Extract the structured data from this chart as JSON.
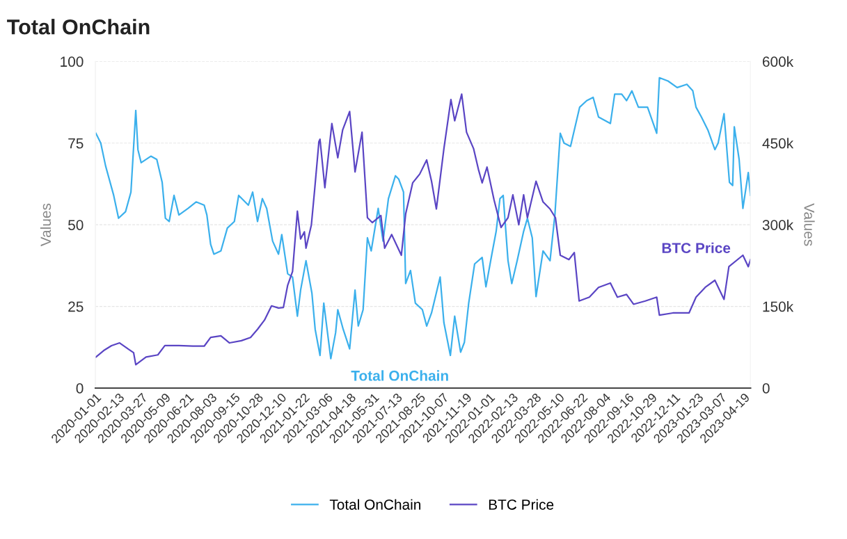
{
  "chart_data": {
    "type": "line",
    "title": "Total OnChain",
    "ylabel": "Values",
    "y2label": "Values",
    "xlim": [
      "2020-01-01",
      "2023-05-01"
    ],
    "xticks": [
      "2020-01-01",
      "2020-02-13",
      "2020-03-27",
      "2020-05-09",
      "2020-06-21",
      "2020-08-03",
      "2020-09-15",
      "2020-10-28",
      "2020-12-10",
      "2021-01-22",
      "2021-03-06",
      "2021-04-18",
      "2021-05-31",
      "2021-07-13",
      "2021-08-25",
      "2021-10-07",
      "2021-11-19",
      "2022-01-01",
      "2022-02-13",
      "2022-03-28",
      "2022-05-10",
      "2022-06-22",
      "2022-08-04",
      "2022-09-16",
      "2022-10-29",
      "2022-12-11",
      "2023-01-23",
      "2023-03-07",
      "2023-04-19"
    ],
    "ylim": [
      0,
      100
    ],
    "yticks": [
      0,
      25,
      50,
      75,
      100
    ],
    "y2lim": [
      0,
      600000
    ],
    "y2ticks": [
      0,
      {
        "value": 150000,
        "label": "150k"
      },
      {
        "value": 300000,
        "label": "300k"
      },
      {
        "value": 450000,
        "label": "450k"
      },
      {
        "value": 600000,
        "label": "600k"
      }
    ],
    "grid": "y",
    "legend": "bottom",
    "annotations": [
      "Total OnChain",
      "BTC Price"
    ],
    "series": [
      {
        "name": "Total OnChain",
        "color": "#3bb0ec",
        "x": [
          "2020-01-02",
          "2020-01-11",
          "2020-01-20",
          "2020-02-04",
          "2020-02-13",
          "2020-02-26",
          "2020-03-07",
          "2020-03-16",
          "2020-03-20",
          "2020-03-26",
          "2020-04-13",
          "2020-04-24",
          "2020-05-04",
          "2020-05-10",
          "2020-05-17",
          "2020-05-26",
          "2020-06-04",
          "2020-06-21",
          "2020-07-06",
          "2020-07-21",
          "2020-07-26",
          "2020-08-02",
          "2020-08-08",
          "2020-08-21",
          "2020-09-02",
          "2020-09-15",
          "2020-09-23",
          "2020-10-11",
          "2020-10-19",
          "2020-10-28",
          "2020-11-06",
          "2020-11-14",
          "2020-11-25",
          "2020-12-06",
          "2020-12-12",
          "2020-12-23",
          "2021-01-01",
          "2021-01-10",
          "2021-01-16",
          "2021-01-26",
          "2021-02-06",
          "2021-02-12",
          "2021-02-21",
          "2021-02-28",
          "2021-03-13",
          "2021-03-22",
          "2021-03-26",
          "2021-04-05",
          "2021-04-17",
          "2021-04-27",
          "2021-05-03",
          "2021-05-12",
          "2021-05-20",
          "2021-05-27",
          "2021-06-09",
          "2021-06-18",
          "2021-06-28",
          "2021-07-11",
          "2021-07-17",
          "2021-07-26",
          "2021-07-30",
          "2021-08-08",
          "2021-08-17",
          "2021-08-30",
          "2021-09-07",
          "2021-09-16",
          "2021-10-02",
          "2021-10-09",
          "2021-10-21",
          "2021-10-29",
          "2021-11-09",
          "2021-11-16",
          "2021-11-24",
          "2021-12-05",
          "2021-12-19",
          "2021-12-26",
          "2022-01-06",
          "2022-01-14",
          "2022-01-21",
          "2022-01-27",
          "2022-02-05",
          "2022-02-12",
          "2022-02-22",
          "2022-03-06",
          "2022-03-13",
          "2022-03-22",
          "2022-03-29",
          "2022-04-11",
          "2022-04-24",
          "2022-05-03",
          "2022-05-13",
          "2022-05-20",
          "2022-06-01",
          "2022-06-18",
          "2022-07-01",
          "2022-07-13",
          "2022-07-23",
          "2022-08-14",
          "2022-08-22",
          "2022-09-04",
          "2022-09-13",
          "2022-09-23",
          "2022-10-05",
          "2022-10-22",
          "2022-11-08",
          "2022-11-13",
          "2022-11-29",
          "2022-12-16",
          "2023-01-03",
          "2023-01-14",
          "2023-01-20",
          "2023-01-30",
          "2023-02-11",
          "2023-02-24",
          "2023-03-02",
          "2023-03-13",
          "2023-03-23",
          "2023-03-29",
          "2023-04-01",
          "2023-04-10",
          "2023-04-17",
          "2023-04-27",
          "2023-05-01"
        ],
        "values": [
          78,
          75,
          68,
          59,
          52,
          54,
          60,
          85,
          73,
          69,
          71,
          70,
          63,
          52,
          51,
          59,
          53,
          55,
          57,
          56,
          53,
          44,
          41,
          42,
          49,
          51,
          59,
          56,
          60,
          51,
          58,
          55,
          45,
          41,
          47,
          35,
          34,
          22,
          30,
          39,
          29,
          18,
          10,
          26,
          9,
          17,
          24,
          18,
          12,
          30,
          19,
          24,
          46,
          42,
          55,
          45,
          58,
          65,
          64,
          60,
          32,
          36,
          26,
          24,
          19,
          23,
          34,
          20,
          10,
          22,
          11,
          14,
          26,
          38,
          40,
          31,
          41,
          48,
          58,
          59,
          39,
          32,
          39,
          48,
          52,
          46,
          28,
          42,
          39,
          53,
          78,
          75,
          74,
          86,
          88,
          89,
          83,
          81,
          90,
          90,
          88,
          91,
          86,
          86,
          78,
          95,
          94,
          92,
          93,
          91,
          86,
          83,
          79,
          73,
          75,
          84,
          63,
          62,
          80,
          70,
          55,
          66,
          59
        ]
      },
      {
        "name": "BTC Price",
        "color": "#5a45c4",
        "axis": "y2",
        "x": [
          "2020-01-02",
          "2020-01-18",
          "2020-01-31",
          "2020-02-15",
          "2020-03-03",
          "2020-03-12",
          "2020-03-16",
          "2020-04-04",
          "2020-04-26",
          "2020-05-09",
          "2020-06-04",
          "2020-06-30",
          "2020-07-21",
          "2020-08-02",
          "2020-08-21",
          "2020-09-06",
          "2020-09-28",
          "2020-10-15",
          "2020-10-28",
          "2020-11-10",
          "2020-11-23",
          "2020-12-06",
          "2020-12-15",
          "2020-12-23",
          "2021-01-01",
          "2021-01-10",
          "2021-01-16",
          "2021-01-23",
          "2021-01-26",
          "2021-02-05",
          "2021-02-11",
          "2021-02-19",
          "2021-02-21",
          "2021-03-02",
          "2021-03-15",
          "2021-03-26",
          "2021-04-04",
          "2021-04-17",
          "2021-04-27",
          "2021-05-10",
          "2021-05-20",
          "2021-05-29",
          "2021-06-14",
          "2021-06-21",
          "2021-07-04",
          "2021-07-22",
          "2021-07-30",
          "2021-08-12",
          "2021-08-25",
          "2021-09-07",
          "2021-09-16",
          "2021-09-25",
          "2021-10-09",
          "2021-10-22",
          "2021-10-29",
          "2021-11-11",
          "2021-11-20",
          "2021-12-03",
          "2021-12-12",
          "2021-12-19",
          "2021-12-28",
          "2022-01-10",
          "2022-01-23",
          "2022-02-05",
          "2022-02-14",
          "2022-02-25",
          "2022-03-06",
          "2022-03-13",
          "2022-03-29",
          "2022-04-11",
          "2022-04-24",
          "2022-05-04",
          "2022-05-13",
          "2022-05-29",
          "2022-06-08",
          "2022-06-17",
          "2022-07-06",
          "2022-07-23",
          "2022-08-14",
          "2022-08-27",
          "2022-09-13",
          "2022-09-26",
          "2022-10-18",
          "2022-11-08",
          "2022-11-13",
          "2022-12-08",
          "2023-01-07",
          "2023-01-20",
          "2023-02-06",
          "2023-02-24",
          "2023-03-13",
          "2023-03-22",
          "2023-04-17",
          "2023-04-27",
          "2023-05-01"
        ],
        "values": [
          57000,
          70000,
          78000,
          83000,
          71000,
          65000,
          43000,
          57000,
          61000,
          78000,
          78000,
          77000,
          77000,
          93000,
          96000,
          83000,
          87000,
          93000,
          108000,
          125000,
          151000,
          147000,
          148000,
          189000,
          214000,
          325000,
          274000,
          287000,
          257000,
          300000,
          364000,
          453000,
          457000,
          368000,
          486000,
          423000,
          474000,
          508000,
          397000,
          470000,
          313000,
          304000,
          317000,
          257000,
          282000,
          244000,
          320000,
          377000,
          393000,
          419000,
          380000,
          329000,
          440000,
          530000,
          491000,
          540000,
          470000,
          440000,
          402000,
          377000,
          406000,
          346000,
          295000,
          313000,
          355000,
          300000,
          355000,
          313000,
          380000,
          342000,
          329000,
          313000,
          244000,
          236000,
          249000,
          160000,
          167000,
          185000,
          193000,
          167000,
          172000,
          154000,
          160000,
          167000,
          134000,
          138000,
          138000,
          167000,
          185000,
          198000,
          163000,
          223000,
          244000,
          223000,
          236000
        ]
      }
    ]
  }
}
